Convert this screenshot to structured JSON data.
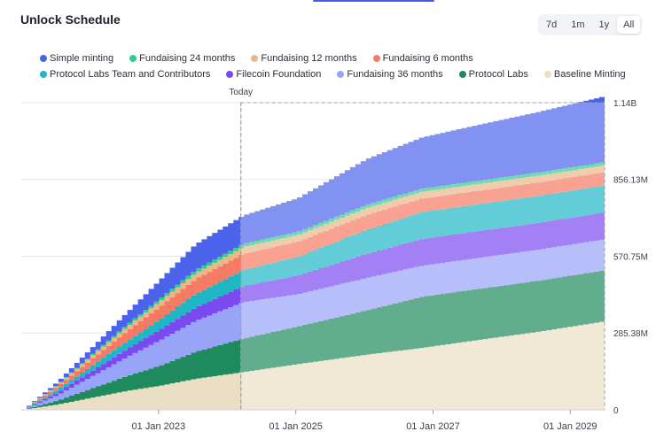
{
  "title": "Unlock Schedule",
  "range_buttons": [
    "7d",
    "1m",
    "1y",
    "All"
  ],
  "active_range": "All",
  "chart_data": {
    "type": "area",
    "stacked": true,
    "title": "Unlock Schedule",
    "today_label": "Today",
    "today_x": 2024.2,
    "x_range": [
      2021.0,
      2029.5
    ],
    "ylim": [
      0,
      1141.5
    ],
    "y_ticks": [
      {
        "value": 0,
        "label": "0"
      },
      {
        "value": 285.38,
        "label": "285.38M"
      },
      {
        "value": 570.75,
        "label": "570.75M"
      },
      {
        "value": 856.13,
        "label": "856.13M"
      },
      {
        "value": 1141.5,
        "label": "1.14B"
      }
    ],
    "x_ticks": [
      {
        "value": 2023.0,
        "label": "01 Jan 2023"
      },
      {
        "value": 2025.0,
        "label": "01 Jan 2025"
      },
      {
        "value": 2027.0,
        "label": "01 Jan 2027"
      },
      {
        "value": 2029.0,
        "label": "01 Jan 2029"
      }
    ],
    "x": [
      2021.0,
      2021.5,
      2022.0,
      2022.5,
      2023.0,
      2023.5,
      2024.2,
      2025.0,
      2026.0,
      2026.8,
      2027.5,
      2028.5,
      2029.5
    ],
    "series": [
      {
        "name": "Baseline Minting",
        "color": "#ecdec4",
        "values": [
          0,
          20,
          45,
          70,
          90,
          115,
          140,
          170,
          205,
          230,
          255,
          290,
          330
        ]
      },
      {
        "name": "Protocol Labs",
        "color": "#1f8a5e",
        "values": [
          0,
          15,
          35,
          55,
          75,
          100,
          125,
          140,
          165,
          190,
          190,
          190,
          190
        ]
      },
      {
        "name": "Fundaising 36 months",
        "color": "#98a4f8",
        "values": [
          0,
          20,
          45,
          70,
          95,
          115,
          135,
          120,
          120,
          115,
          115,
          115,
          115
        ]
      },
      {
        "name": "Filecoin Foundation",
        "color": "#7b49f0",
        "values": [
          0,
          10,
          20,
          30,
          40,
          50,
          60,
          70,
          90,
          100,
          100,
          100,
          100
        ]
      },
      {
        "name": "Protocol Labs Team and Contributors",
        "color": "#1fb7c6",
        "values": [
          0,
          10,
          20,
          30,
          40,
          50,
          60,
          70,
          90,
          100,
          100,
          100,
          100
        ]
      },
      {
        "name": "Fundaising 6 months",
        "color": "#f67a64",
        "values": [
          0,
          12,
          25,
          36,
          46,
          55,
          60,
          55,
          55,
          50,
          50,
          50,
          50
        ]
      },
      {
        "name": "Fundaising 12 months",
        "color": "#e9b888",
        "values": [
          0,
          6,
          12,
          16,
          20,
          22,
          25,
          25,
          25,
          25,
          25,
          25,
          25
        ]
      },
      {
        "name": "Fundaising 24 months",
        "color": "#2ecf8a",
        "values": [
          0,
          2,
          5,
          8,
          10,
          12,
          12,
          12,
          12,
          12,
          12,
          12,
          12
        ]
      },
      {
        "name": "Simple minting",
        "color": "#4b63ea",
        "values": [
          0,
          10,
          25,
          45,
          70,
          95,
          105,
          125,
          170,
          190,
          205,
          225,
          245
        ]
      }
    ],
    "legend_order": [
      "Simple minting",
      "Fundaising 24 months",
      "Fundaising 12 months",
      "Fundaising 6 months",
      "Protocol Labs Team and Contributors",
      "Filecoin Foundation",
      "Fundaising 36 months",
      "Protocol Labs",
      "Baseline Minting"
    ]
  }
}
